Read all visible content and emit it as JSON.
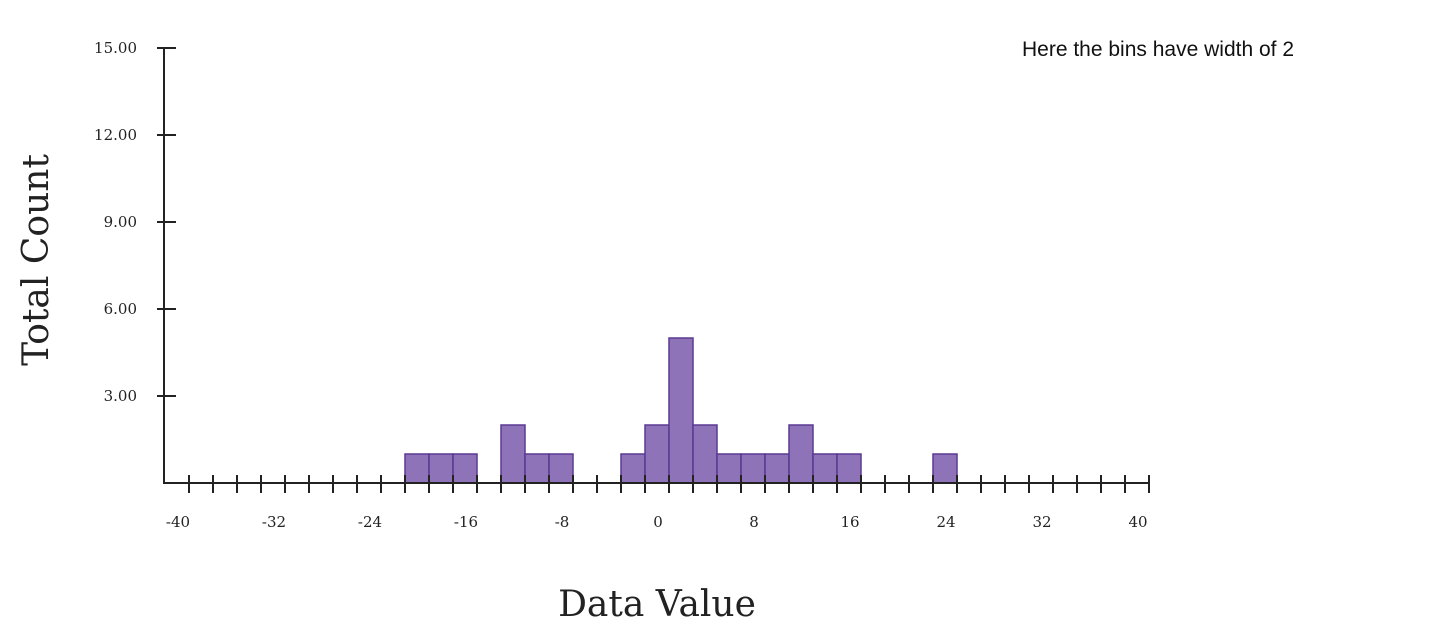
{
  "annotation": "Here the bins have width of 2",
  "colors": {
    "bar_fill": "#8e73b9",
    "bar_stroke": "#5a3a94",
    "axis": "#222222"
  },
  "chart_data": {
    "type": "bar",
    "title": "",
    "xlabel": "Data Value",
    "ylabel": "Total Count",
    "annotation": "Here the bins have width of 2",
    "bin_width": 2,
    "xlim": [
      -40,
      40
    ],
    "ylim": [
      0,
      15
    ],
    "x_tick_labels": [
      "-40",
      "-32",
      "-24",
      "-16",
      "-8",
      "0",
      "8",
      "16",
      "24",
      "32",
      "40"
    ],
    "y_tick_labels": [
      "3.00",
      "6.00",
      "9.00",
      "12.00",
      "15.00"
    ],
    "grid": false,
    "bins": [
      {
        "start": -22,
        "end": -20,
        "count": 1
      },
      {
        "start": -20,
        "end": -18,
        "count": 1
      },
      {
        "start": -18,
        "end": -16,
        "count": 1
      },
      {
        "start": -14,
        "end": -12,
        "count": 2
      },
      {
        "start": -12,
        "end": -10,
        "count": 1
      },
      {
        "start": -10,
        "end": -8,
        "count": 1
      },
      {
        "start": -4,
        "end": -2,
        "count": 1
      },
      {
        "start": -2,
        "end": 0,
        "count": 2
      },
      {
        "start": 0,
        "end": 2,
        "count": 5
      },
      {
        "start": 2,
        "end": 4,
        "count": 2
      },
      {
        "start": 4,
        "end": 6,
        "count": 1
      },
      {
        "start": 6,
        "end": 8,
        "count": 1
      },
      {
        "start": 8,
        "end": 10,
        "count": 1
      },
      {
        "start": 10,
        "end": 12,
        "count": 2
      },
      {
        "start": 12,
        "end": 14,
        "count": 1
      },
      {
        "start": 14,
        "end": 16,
        "count": 1
      },
      {
        "start": 22,
        "end": 24,
        "count": 1
      }
    ]
  }
}
